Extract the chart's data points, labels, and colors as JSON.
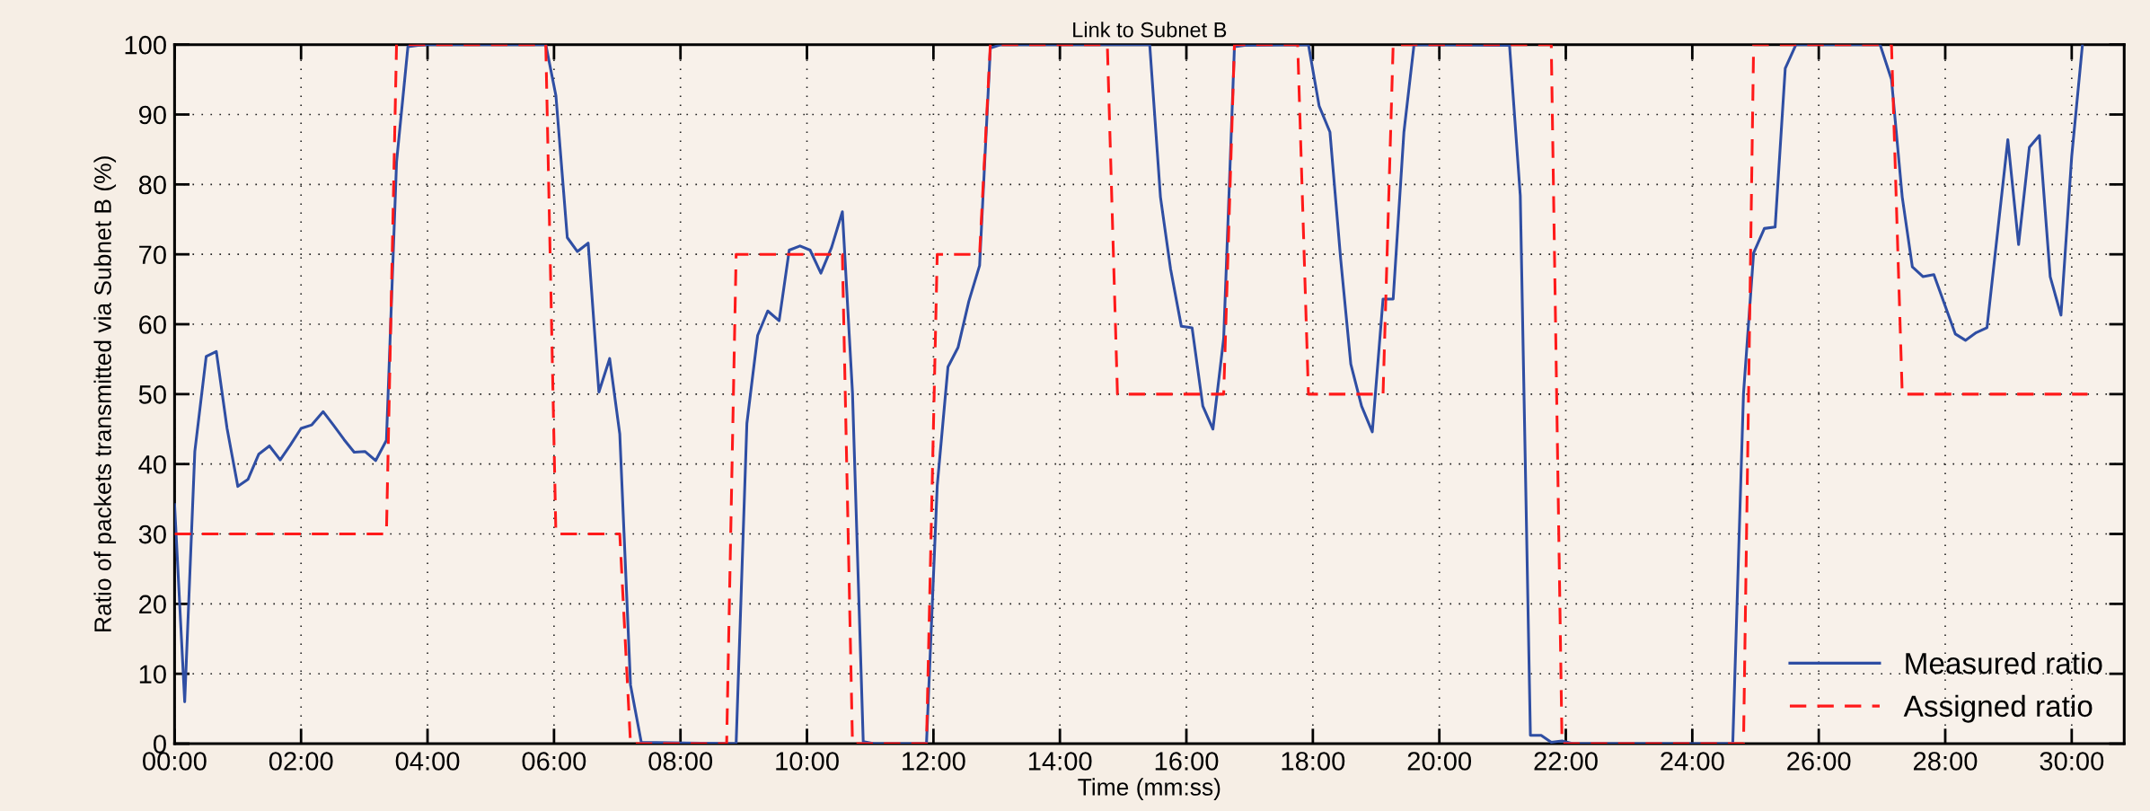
{
  "chart_data": {
    "type": "line",
    "title": "Link to Subnet B",
    "xlabel": "Time (mm:ss)",
    "ylabel": "Ratio of packets transmitted via Subnet B (%)",
    "xlim": [
      0,
      30.83
    ],
    "ylim": [
      0,
      100
    ],
    "xticks": [
      {
        "value": 0,
        "label": "00:00"
      },
      {
        "value": 2,
        "label": "02:00"
      },
      {
        "value": 4,
        "label": "04:00"
      },
      {
        "value": 6,
        "label": "06:00"
      },
      {
        "value": 8,
        "label": "08:00"
      },
      {
        "value": 10,
        "label": "10:00"
      },
      {
        "value": 12,
        "label": "12:00"
      },
      {
        "value": 14,
        "label": "14:00"
      },
      {
        "value": 16,
        "label": "16:00"
      },
      {
        "value": 18,
        "label": "18:00"
      },
      {
        "value": 20,
        "label": "20:00"
      },
      {
        "value": 22,
        "label": "22:00"
      },
      {
        "value": 24,
        "label": "24:00"
      },
      {
        "value": 26,
        "label": "26:00"
      },
      {
        "value": 28,
        "label": "28:00"
      },
      {
        "value": 30,
        "label": "30:00"
      }
    ],
    "yticks": [
      0,
      10,
      20,
      30,
      40,
      50,
      60,
      70,
      80,
      90,
      100
    ],
    "grid": true,
    "legend": "bottom right",
    "marker": "none",
    "series": [
      {
        "name": "Measured ratio",
        "color": "#2f4ea3",
        "line_style": "solid",
        "x": [
          0,
          0.16,
          0.32,
          0.5,
          0.66,
          0.83,
          1.0,
          1.16,
          1.33,
          1.5,
          1.67,
          1.83,
          2.0,
          2.17,
          2.35,
          2.51,
          2.68,
          2.84,
          3.01,
          3.18,
          3.35,
          3.51,
          3.69,
          3.85,
          4.02,
          5.02,
          5.87,
          6.03,
          6.21,
          6.37,
          6.54,
          6.71,
          6.88,
          7.04,
          7.21,
          7.38,
          8.88,
          9.05,
          9.22,
          9.38,
          9.56,
          9.72,
          9.89,
          10.05,
          10.22,
          10.39,
          10.56,
          10.72,
          10.89,
          11.06,
          11.89,
          12.06,
          12.23,
          12.39,
          12.56,
          12.73,
          12.9,
          13.07,
          15.42,
          15.59,
          15.75,
          15.92,
          16.09,
          16.26,
          16.42,
          16.59,
          16.76,
          16.92,
          17.93,
          18.1,
          18.27,
          18.44,
          18.6,
          18.77,
          18.94,
          19.11,
          19.27,
          19.44,
          19.6,
          21.11,
          21.28,
          21.44,
          21.61,
          21.77,
          21.94,
          22.11,
          24.64,
          24.81,
          24.97,
          25.14,
          25.31,
          25.47,
          25.64,
          26.97,
          27.15,
          27.32,
          27.48,
          27.65,
          27.82,
          28.16,
          28.32,
          28.49,
          28.66,
          28.99,
          29.16,
          29.33,
          29.49,
          29.66,
          29.83,
          30.0,
          30.17
        ],
        "values": [
          34.2,
          6,
          41.8,
          55.4,
          56.1,
          45.1,
          36.8,
          37.8,
          41.4,
          42.6,
          40.6,
          42.7,
          45.1,
          45.6,
          47.5,
          45.6,
          43.5,
          41.7,
          41.8,
          40.5,
          43.4,
          83.2,
          99.7,
          99.9,
          100,
          100,
          100,
          92.7,
          72.4,
          70.4,
          71.6,
          50.3,
          55.1,
          44.3,
          8.4,
          0.2,
          0,
          45.8,
          58.4,
          61.9,
          60.5,
          70.6,
          71.2,
          70.6,
          67.3,
          71.0,
          76.1,
          50.2,
          0.3,
          0,
          0,
          36.9,
          53.9,
          56.7,
          63.3,
          68.4,
          99.5,
          100,
          100,
          78.2,
          67.9,
          59.7,
          59.5,
          48.3,
          45.0,
          58.0,
          99.7,
          99.9,
          100,
          91.2,
          87.5,
          69.3,
          54.3,
          48.3,
          44.6,
          63.6,
          63.6,
          87.5,
          100,
          99.9,
          78.4,
          1.2,
          1.2,
          0.2,
          0.4,
          0,
          0,
          50.1,
          70.2,
          73.7,
          73.9,
          96.6,
          100,
          100,
          95.0,
          78.2,
          68.2,
          66.8,
          67.1,
          58.6,
          57.7,
          58.8,
          59.5,
          86.4,
          71.4,
          85.3,
          87.0,
          66.8,
          61.3,
          84.0,
          100
        ]
      },
      {
        "name": "Assigned ratio",
        "color": "#ff1a1a",
        "line_style": "dashed",
        "x": [
          0,
          3.35,
          3.51,
          5.87,
          6.03,
          7.04,
          7.21,
          8.73,
          8.88,
          10.56,
          10.72,
          11.89,
          12.06,
          12.73,
          12.9,
          14.75,
          14.91,
          16.59,
          16.76,
          17.76,
          17.93,
          19.11,
          19.27,
          21.77,
          21.94,
          24.81,
          24.97,
          27.15,
          27.32,
          30.25
        ],
        "values": [
          30,
          30,
          100,
          100,
          30,
          30,
          0,
          0,
          70,
          70,
          0,
          0,
          70,
          70,
          100,
          100,
          50,
          50,
          100,
          100,
          50,
          50,
          100,
          100,
          0,
          0,
          100,
          100,
          50,
          50
        ]
      }
    ]
  }
}
